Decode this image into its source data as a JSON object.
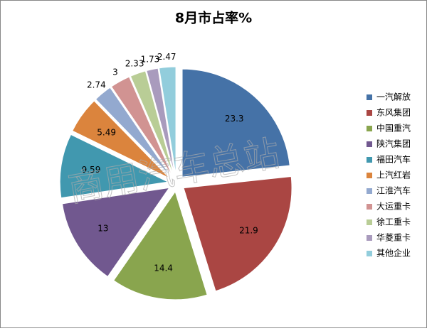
{
  "chart_data": {
    "type": "pie",
    "title": "8月市占率%",
    "watermark": "商用汽车总站",
    "categories": [
      "一汽解放",
      "东风集团",
      "中国重汽",
      "陕汽集团",
      "福田汽车",
      "上汽红岩",
      "江淮汽车",
      "大运重卡",
      "徐工重卡",
      "华菱重卡",
      "其他企业"
    ],
    "values": [
      23.3,
      21.9,
      14.4,
      13,
      9.59,
      5.49,
      2.74,
      3,
      2.33,
      1.73,
      2.47
    ],
    "colors": [
      "#4572a7",
      "#aa4643",
      "#89a54e",
      "#71588f",
      "#4198af",
      "#db843d",
      "#93a9cf",
      "#d19392",
      "#b9cd96",
      "#a99bbd",
      "#92cddc"
    ],
    "legend": "right"
  }
}
